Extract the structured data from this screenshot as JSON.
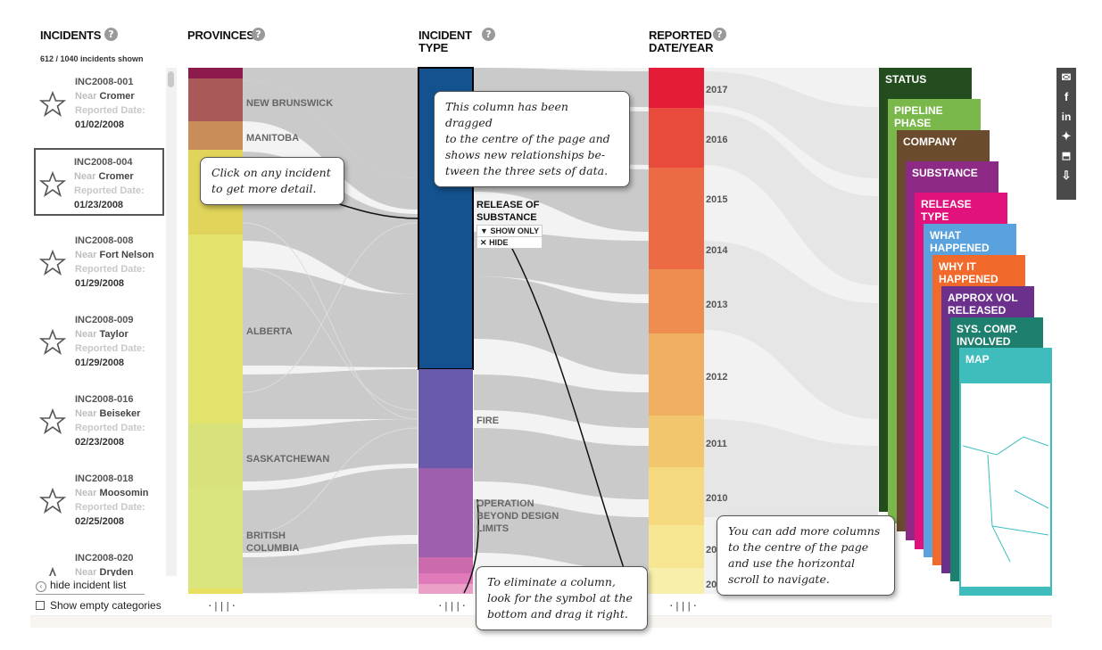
{
  "headers": {
    "incidents": "INCIDENTS",
    "provinces": "PROVINCES",
    "incident_type_1": "INCIDENT",
    "incident_type_2": "TYPE",
    "reported_1": "REPORTED",
    "reported_2": "DATE/YEAR",
    "help": "?"
  },
  "count": "612 / 1040 incidents shown",
  "incidents": [
    {
      "id": "INC2008-001",
      "near": "Near",
      "city": "Cromer",
      "reported_label": "Reported Date:",
      "date": "01/02/2008",
      "selected": false
    },
    {
      "id": "INC2008-004",
      "near": "Near",
      "city": "Cromer",
      "reported_label": "Reported Date:",
      "date": "01/23/2008",
      "selected": true
    },
    {
      "id": "INC2008-008",
      "near": "Near",
      "city": "Fort Nelson",
      "reported_label": "Reported Date:",
      "date": "01/29/2008",
      "selected": false
    },
    {
      "id": "INC2008-009",
      "near": "Near",
      "city": "Taylor",
      "reported_label": "Reported Date:",
      "date": "01/29/2008",
      "selected": false
    },
    {
      "id": "INC2008-016",
      "near": "Near",
      "city": "Beiseker",
      "reported_label": "Reported Date:",
      "date": "02/23/2008",
      "selected": false
    },
    {
      "id": "INC2008-018",
      "near": "Near",
      "city": "Moosomin",
      "reported_label": "Reported Date:",
      "date": "02/25/2008",
      "selected": false
    },
    {
      "id": "INC2008-020",
      "near": "Near",
      "city": "Dryden",
      "reported_label": "Reported Date:",
      "date": "",
      "selected": false
    }
  ],
  "controls": {
    "hide_list": "hide incident list",
    "show_empty": "Show empty categories",
    "drag_handle": "·|||·"
  },
  "provinces": {
    "new_brunswick": "NEW BRUNSWICK",
    "manitoba": "MANITOBA",
    "alberta": "ALBERTA",
    "saskatchewan": "SASKATCHEWAN",
    "british_columbia_1": "BRITISH",
    "british_columbia_2": "COLUMBIA"
  },
  "incident_types": {
    "release_1": "RELEASE OF",
    "release_2": "SUBSTANCE",
    "show_only": "SHOW ONLY",
    "hide": "HIDE",
    "fire": "FIRE",
    "operation_1": "OPERATION",
    "operation_2": "BEYOND DESIGN",
    "operation_3": "LIMITS"
  },
  "years": [
    "2017",
    "2016",
    "2015",
    "2014",
    "2013",
    "2012",
    "2011",
    "2010",
    "20",
    "20"
  ],
  "callouts": {
    "click": [
      "Click on any incident",
      "to get more detail."
    ],
    "dragged": [
      "This column has been dragged",
      "to the centre of the page and",
      "shows new relationships be-",
      "tween the three sets of data."
    ],
    "eliminate": [
      "To eliminate a column,",
      "look for the symbol at the",
      "bottom and drag it right."
    ],
    "add": [
      "You can add more columns",
      "to the centre of the page",
      "and use the horizontal",
      "scroll to navigate."
    ]
  },
  "panels": {
    "status": "STATUS",
    "pipeline_phase": "PIPELINE PHASE",
    "company": "COMPANY",
    "substance": "SUBSTANCE",
    "release_type": "RELEASE TYPE",
    "what_happened": "WHAT HAPPENED",
    "why_it_happened": "WHY IT HAPPENED",
    "approx_vol_1": "APPROX VOL",
    "approx_vol_2": "RELEASED",
    "sys_comp_1": "SYS. COMP.",
    "sys_comp_2": "INVOLVED",
    "map": "MAP"
  },
  "colors": {
    "incident_type_blue": "#13528e",
    "fire": "#6a5aab",
    "operation": "#9e5fae",
    "status": "#234d1f",
    "pipeline": "#7ab84c",
    "company": "#6b4b2e",
    "substance": "#8d2a86",
    "release": "#e2127d",
    "what": "#5aa2de",
    "why": "#f26a2b",
    "approx": "#6b2f8c",
    "sys": "#1f7f6e",
    "map": "#3fbdbd"
  },
  "social": [
    "mail-icon",
    "facebook-icon",
    "linkedin-icon",
    "twitter-icon",
    "alberta-icon",
    "download-icon"
  ]
}
